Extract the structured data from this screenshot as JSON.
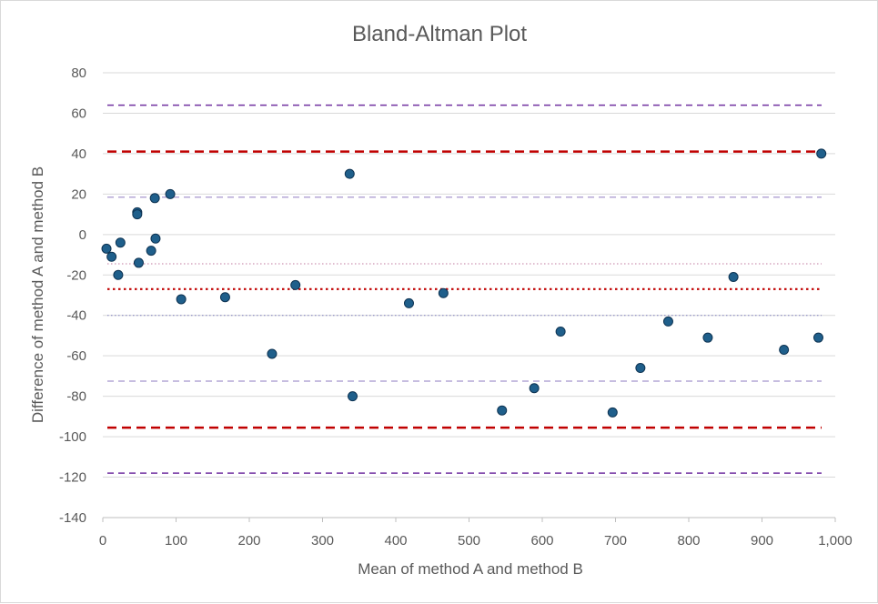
{
  "chart_data": {
    "type": "scatter",
    "title": "Bland-Altman Plot",
    "xlabel": "Mean of method A and method B",
    "ylabel": "Difference of method A and method B",
    "xlim": [
      0,
      1000
    ],
    "ylim": [
      -140,
      80
    ],
    "x_ticks": [
      0,
      100,
      200,
      300,
      400,
      500,
      600,
      700,
      800,
      900,
      1000
    ],
    "x_tick_labels": [
      "0",
      "100",
      "200",
      "300",
      "400",
      "500",
      "600",
      "700",
      "800",
      "900",
      "1,000"
    ],
    "y_ticks": [
      80,
      60,
      40,
      20,
      0,
      -20,
      -40,
      -60,
      -80,
      -100,
      -120,
      -140
    ],
    "y_tick_labels": [
      "80",
      "60",
      "40",
      "20",
      "0",
      "-20",
      "-40",
      "-60",
      "-80",
      "-100",
      "-120",
      "-140"
    ],
    "grid": "horizontal",
    "legend": "none",
    "marker_color": "#1f5f8b",
    "marker_edge_color": "#0e3352",
    "points": [
      {
        "x": 5,
        "y": -7
      },
      {
        "x": 12,
        "y": -11
      },
      {
        "x": 21,
        "y": -20
      },
      {
        "x": 24,
        "y": -4
      },
      {
        "x": 47,
        "y": 11
      },
      {
        "x": 47,
        "y": 10
      },
      {
        "x": 49,
        "y": -14
      },
      {
        "x": 66,
        "y": -8
      },
      {
        "x": 71,
        "y": 18
      },
      {
        "x": 72,
        "y": -2
      },
      {
        "x": 92,
        "y": 20
      },
      {
        "x": 107,
        "y": -32
      },
      {
        "x": 167,
        "y": -31
      },
      {
        "x": 231,
        "y": -59
      },
      {
        "x": 263,
        "y": -25
      },
      {
        "x": 337,
        "y": 30
      },
      {
        "x": 341,
        "y": -80
      },
      {
        "x": 418,
        "y": -34
      },
      {
        "x": 465,
        "y": -29
      },
      {
        "x": 545,
        "y": -87
      },
      {
        "x": 589,
        "y": -76
      },
      {
        "x": 625,
        "y": -48
      },
      {
        "x": 696,
        "y": -88
      },
      {
        "x": 734,
        "y": -66
      },
      {
        "x": 772,
        "y": -43
      },
      {
        "x": 826,
        "y": -51
      },
      {
        "x": 861,
        "y": -21
      },
      {
        "x": 930,
        "y": -57
      },
      {
        "x": 977,
        "y": -51
      },
      {
        "x": 981,
        "y": 40
      }
    ],
    "reference_lines": [
      {
        "name": "upper-limit-ci-upper",
        "y": 64,
        "color": "#7030a0",
        "style": "dashed-thin"
      },
      {
        "name": "upper-limit-of-agreement",
        "y": 41,
        "color": "#c00000",
        "style": "dashed-thick"
      },
      {
        "name": "upper-limit-ci-lower",
        "y": 18.5,
        "color": "#b4a7d6",
        "style": "dashed-thin"
      },
      {
        "name": "mean-ci-upper",
        "y": -14.5,
        "color": "#c27ba0",
        "style": "dotted-thin"
      },
      {
        "name": "mean-difference",
        "y": -27,
        "color": "#c00000",
        "style": "dotted-thick"
      },
      {
        "name": "mean-ci-lower",
        "y": -40,
        "color": "#7f7fbf",
        "style": "dotted-thin"
      },
      {
        "name": "lower-limit-ci-upper",
        "y": -72.5,
        "color": "#b4a7d6",
        "style": "dashed-thin"
      },
      {
        "name": "lower-limit-of-agreement",
        "y": -95.5,
        "color": "#c00000",
        "style": "dashed-thick"
      },
      {
        "name": "lower-limit-ci-lower",
        "y": -118,
        "color": "#7030a0",
        "style": "dashed-thin"
      }
    ]
  }
}
